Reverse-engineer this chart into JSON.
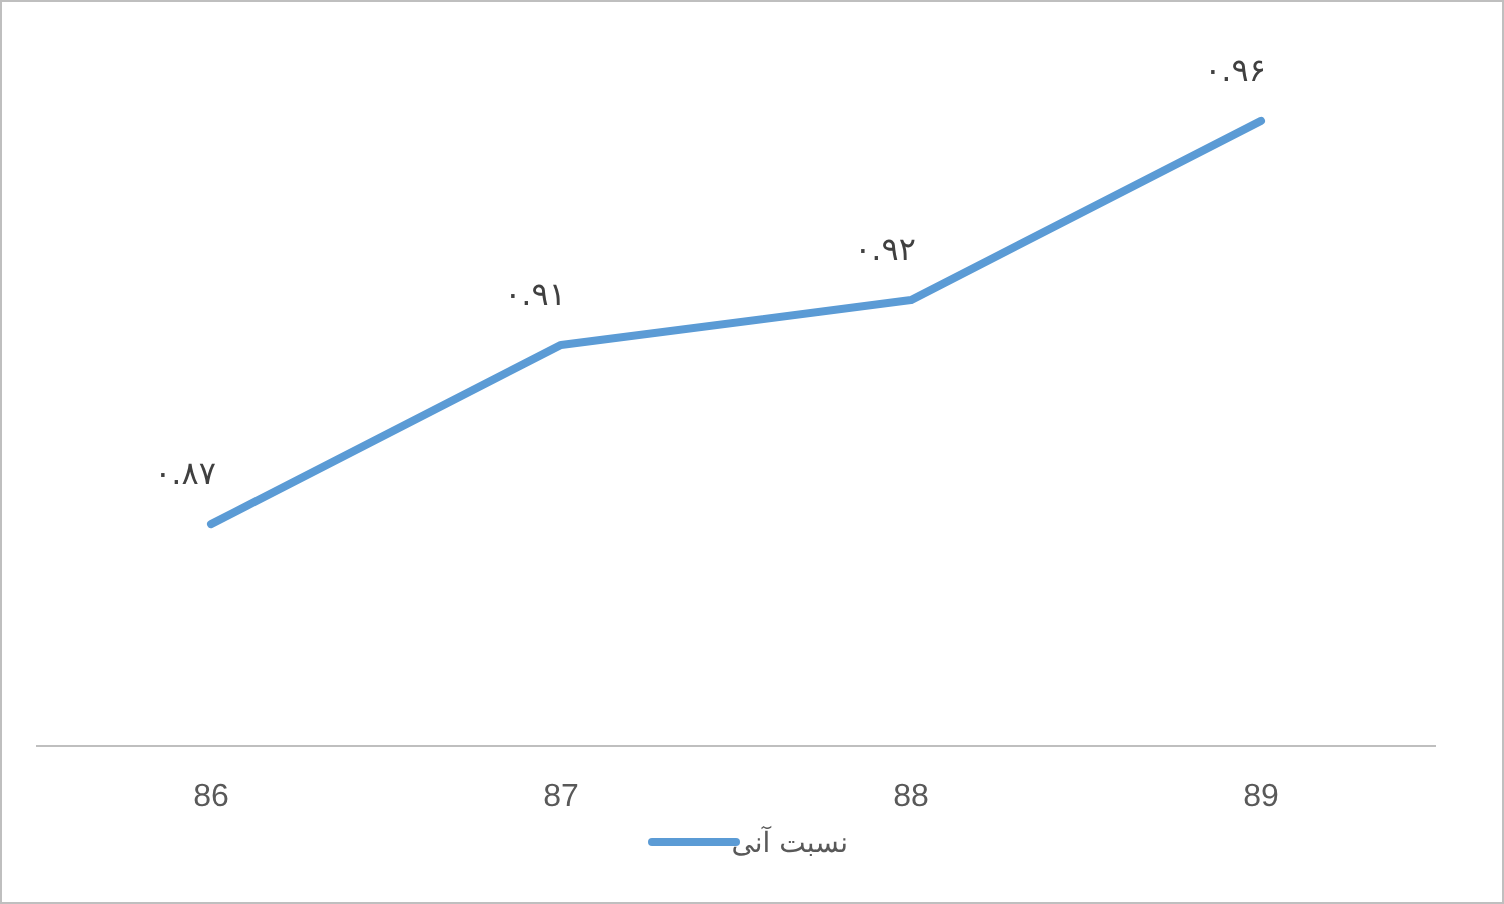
{
  "chart_data": {
    "type": "line",
    "categories": [
      "86",
      "87",
      "88",
      "89"
    ],
    "series": [
      {
        "name": "نسبت آنی",
        "color": "#5b9bd5",
        "values": [
          0.87,
          0.91,
          0.92,
          0.96
        ],
        "value_labels": [
          "۰.۸۷",
          "۰.۹۱",
          "۰.۹۲",
          "۰.۹۶"
        ]
      }
    ],
    "legend": "bottom",
    "grid": false,
    "marker": "none",
    "line_style": "solid"
  }
}
